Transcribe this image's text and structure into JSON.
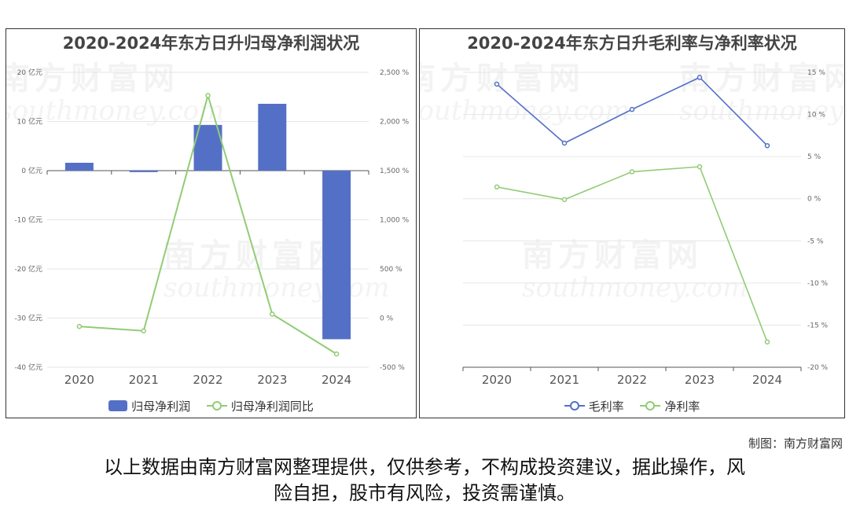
{
  "watermark": {
    "cn": "南方财富网",
    "en": "southmoney.com"
  },
  "credit": "制图：南方财富网",
  "disclaimer": [
    "以上数据由南方财富网整理提供，仅供参考，不构成投资建议，据此操作，风",
    "险自担，股市有风险，投资需谨慎。"
  ],
  "chart_data": [
    {
      "type": "bar",
      "title": "2020-2024年东方日升归母净利润状况",
      "categories": [
        "2020",
        "2021",
        "2022",
        "2023",
        "2024"
      ],
      "series": [
        {
          "name": "归母净利润",
          "type": "bar",
          "axis": "left",
          "color": "#5470c6",
          "values": [
            1.6,
            -0.3,
            9.3,
            13.6,
            -34.3
          ]
        },
        {
          "name": "归母净利润同比",
          "type": "line",
          "axis": "right",
          "color": "#91cc75",
          "values": [
            -85,
            -130,
            2265,
            40,
            -365
          ]
        }
      ],
      "y_left": {
        "min": -40,
        "max": 20,
        "step": 10,
        "suffix": " 亿元"
      },
      "y_right": {
        "min": -500,
        "max": 2500,
        "step": 500,
        "suffix": " %"
      },
      "legend_position": "bottom-center",
      "grid": true
    },
    {
      "type": "line",
      "title": "2020-2024年东方日升毛利率与净利率状况",
      "categories": [
        "2020",
        "2021",
        "2022",
        "2023",
        "2024"
      ],
      "series": [
        {
          "name": "毛利率",
          "color": "#5470c6",
          "values": [
            13.6,
            6.6,
            10.6,
            14.4,
            6.3
          ]
        },
        {
          "name": "净利率",
          "color": "#91cc75",
          "values": [
            1.4,
            -0.1,
            3.2,
            3.8,
            -17.0
          ]
        }
      ],
      "y_right": {
        "min": -20,
        "max": 15,
        "step": 5,
        "suffix": " %"
      },
      "legend_position": "bottom-center",
      "grid": true
    }
  ]
}
